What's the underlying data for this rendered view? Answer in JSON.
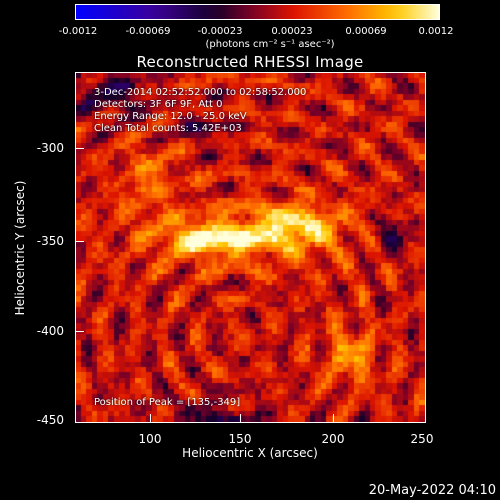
{
  "colorbar": {
    "ticks": [
      "-0.0012",
      "-0.00069",
      "-0.00023",
      "0.00023",
      "0.00069",
      "0.0012"
    ],
    "units": "(photons cm⁻² s⁻¹ asec⁻²)"
  },
  "title": "Reconstructed RHESSI Image",
  "annotations": {
    "time": "3-Dec-2014 02:52:52.000 to 02:58:52.000",
    "detectors": "Detectors: 3F 6F 9F, Att 0",
    "energy": "Energy Range: 12.0 - 25.0 keV",
    "clean": "Clean     Total counts: 5.42E+03",
    "peak": "Position of Peak = [135,-349]"
  },
  "axes": {
    "xlabel": "Heliocentric X (arcsec)",
    "ylabel": "Heliocentric Y (arcsec)",
    "xticks": [
      "100",
      "150",
      "200",
      "250"
    ],
    "yticks": [
      "-300",
      "-350",
      "-400",
      "-450"
    ]
  },
  "footer": {
    "date": "20-May-2022 04:10"
  }
}
